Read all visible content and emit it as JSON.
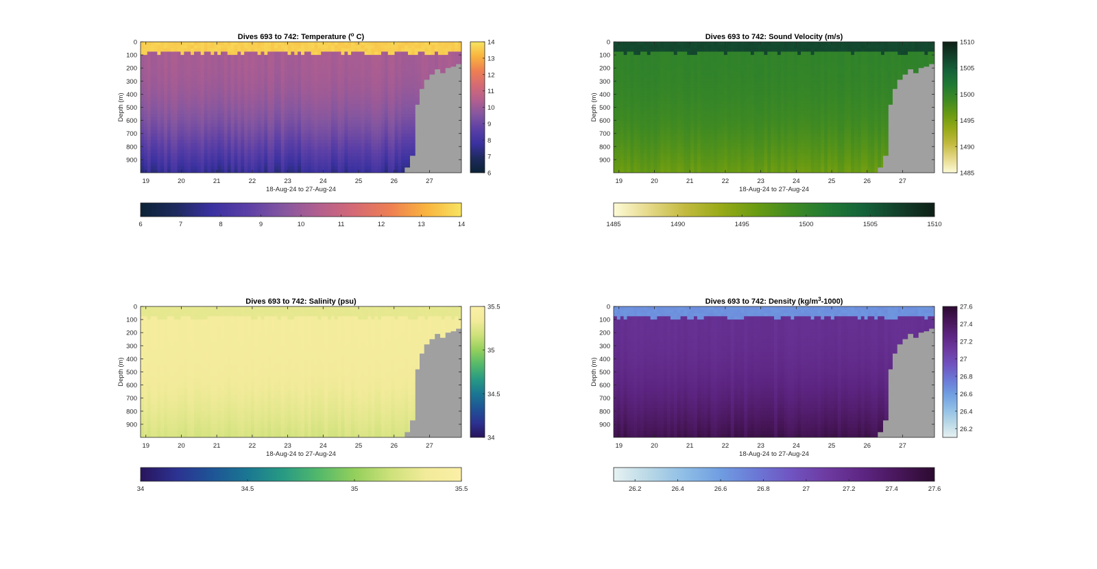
{
  "chart_data": [
    {
      "id": "temperature",
      "type": "heatmap",
      "title": "Dives 693 to 742: Temperature (",
      "title_sup": "o",
      "title_tail": " C)",
      "xlabel": "18-Aug-24 to 27-Aug-24",
      "ylabel": "Depth (m)",
      "x_ticks": [
        "19",
        "20",
        "21",
        "22",
        "23",
        "24",
        "25",
        "26",
        "27"
      ],
      "y_ticks": [
        "0",
        "100",
        "200",
        "300",
        "400",
        "500",
        "600",
        "700",
        "800",
        "900"
      ],
      "y_reversed": true,
      "ylim": [
        0,
        1000
      ],
      "xlim": [
        18.85,
        27.9
      ],
      "colorbar_range": [
        6,
        14
      ],
      "colorbar_ticks": [
        "6",
        "7",
        "8",
        "9",
        "10",
        "11",
        "12",
        "13",
        "14"
      ],
      "colormap": [
        "#0b2236",
        "#1e2a5e",
        "#3a31a0",
        "#5b3fa6",
        "#8456a0",
        "#b35f8e",
        "#d56a74",
        "#ee7f52",
        "#f9b33e",
        "#f7e460"
      ],
      "surface_value": 13.6,
      "mixed_value": 10.2,
      "deep_value": 7.5,
      "bottom_color": "#a0a0a0"
    },
    {
      "id": "sound_velocity",
      "type": "heatmap",
      "title": "Dives 693 to 742: Sound Velocity (m/s)",
      "xlabel": "18-Aug-24 to 27-Aug-24",
      "ylabel": "Depth (m)",
      "x_ticks": [
        "19",
        "20",
        "21",
        "22",
        "23",
        "24",
        "25",
        "26",
        "27"
      ],
      "y_ticks": [
        "0",
        "100",
        "200",
        "300",
        "400",
        "500",
        "600",
        "700",
        "800",
        "900"
      ],
      "y_reversed": true,
      "ylim": [
        0,
        1000
      ],
      "xlim": [
        18.85,
        27.9
      ],
      "colorbar_range": [
        1485,
        1510
      ],
      "colorbar_ticks": [
        "1485",
        "1490",
        "1495",
        "1500",
        "1505",
        "1510"
      ],
      "colormap": [
        "#fdfbd7",
        "#e5d888",
        "#c2ba3f",
        "#98aa18",
        "#6a9b12",
        "#3f8a22",
        "#217a33",
        "#15623a",
        "#123f2a",
        "#0e1f17"
      ],
      "surface_value": 1506.5,
      "mixed_value": 1500.2,
      "deep_value": 1496.0,
      "bottom_color": "#a0a0a0"
    },
    {
      "id": "salinity",
      "type": "heatmap",
      "title": "Dives 693 to 742: Salinity (psu)",
      "xlabel": "18-Aug-24 to 27-Aug-24",
      "ylabel": "Depth (m)",
      "x_ticks": [
        "19",
        "20",
        "21",
        "22",
        "23",
        "24",
        "25",
        "26",
        "27"
      ],
      "y_ticks": [
        "0",
        "100",
        "200",
        "300",
        "400",
        "500",
        "600",
        "700",
        "800",
        "900"
      ],
      "y_reversed": true,
      "ylim": [
        0,
        1000
      ],
      "xlim": [
        18.85,
        27.9
      ],
      "colorbar_range": [
        34,
        35.5
      ],
      "colorbar_ticks": [
        "34",
        "34.5",
        "35",
        "35.5"
      ],
      "colormap": [
        "#29145c",
        "#2c3291",
        "#1e5496",
        "#1a7792",
        "#289a83",
        "#53b96a",
        "#93cf5c",
        "#cde17a",
        "#f2eb9a",
        "#fbefa6"
      ],
      "surface_value": 35.28,
      "mixed_value": 35.38,
      "deep_value": 35.2,
      "bottom_color": "#a0a0a0"
    },
    {
      "id": "density",
      "type": "heatmap",
      "title": "Dives 693 to 742: Density (kg/m",
      "title_sup": "3",
      "title_tail": "-1000)",
      "xlabel": "18-Aug-24 to 27-Aug-24",
      "ylabel": "Depth (m)",
      "x_ticks": [
        "19",
        "20",
        "21",
        "22",
        "23",
        "24",
        "25",
        "26",
        "27"
      ],
      "y_ticks": [
        "0",
        "100",
        "200",
        "300",
        "400",
        "500",
        "600",
        "700",
        "800",
        "900"
      ],
      "y_reversed": true,
      "ylim": [
        0,
        1000
      ],
      "xlim": [
        18.85,
        27.9
      ],
      "colorbar_range": [
        26.1,
        27.6
      ],
      "colorbar_ticks": [
        "26.2",
        "26.4",
        "26.6",
        "26.8",
        "27",
        "27.2",
        "27.4",
        "27.6"
      ],
      "colorbar_tick_values": [
        26.2,
        26.4,
        26.6,
        26.8,
        27.0,
        27.2,
        27.4,
        27.6
      ],
      "colormap": [
        "#e7f1f2",
        "#b8d8e6",
        "#8ebde6",
        "#6f9de1",
        "#6b78d6",
        "#7053c0",
        "#6d3aa0",
        "#5d2582",
        "#471659",
        "#2c0a30"
      ],
      "surface_value": 26.65,
      "mixed_value": 27.18,
      "deep_value": 27.48,
      "bottom_color": "#a0a0a0"
    }
  ]
}
